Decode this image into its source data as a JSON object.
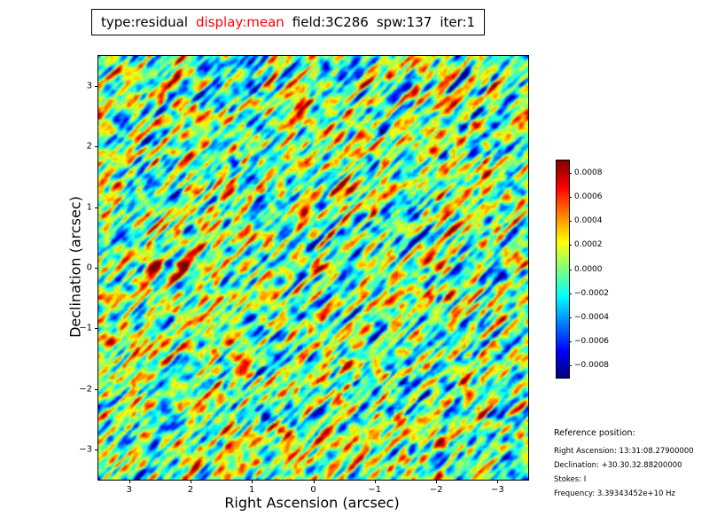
{
  "title": {
    "parts": [
      {
        "text": "type:residual",
        "color": "#000000"
      },
      {
        "text": "display:mean",
        "color": "#ff0000"
      },
      {
        "text": "field:3C286",
        "color": "#000000"
      },
      {
        "text": "spw:137",
        "color": "#000000"
      },
      {
        "text": "iter:1",
        "color": "#000000"
      }
    ]
  },
  "axes": {
    "xlabel": "Right Ascension (arcsec)",
    "ylabel": "Declination (arcsec)",
    "x_range": [
      3.5,
      -3.5
    ],
    "y_range": [
      3.5,
      -3.5
    ],
    "x_ticks": {
      "values": [
        3,
        2,
        1,
        0,
        -1,
        -2,
        -3
      ],
      "labels": [
        "3",
        "2",
        "1",
        "0",
        "−1",
        "−2",
        "−3"
      ]
    },
    "y_ticks": {
      "values": [
        3,
        2,
        1,
        0,
        -1,
        -2,
        -3
      ],
      "labels": [
        "3",
        "2",
        "1",
        "0",
        "−1",
        "−2",
        "−3"
      ]
    }
  },
  "colorbar": {
    "vmin": -0.0009,
    "vmax": 0.0009,
    "colormap": "jet",
    "ticks": {
      "values": [
        0.0008,
        0.0006,
        0.0004,
        0.0002,
        0,
        -0.0002,
        -0.0004,
        -0.0006,
        -0.0008
      ],
      "labels": [
        "0.0008",
        "0.0006",
        "0.0004",
        "0.0002",
        "0.0000",
        "−0.0002",
        "−0.0004",
        "−0.0006",
        "−0.0008"
      ]
    }
  },
  "reference": {
    "heading": "Reference position:",
    "lines": [
      "Right Ascension: 13:31:08.27900000",
      "Declination: +30.30.32.88200000",
      "Stokes: I",
      "Frequency: 3.39343452e+10 Hz"
    ]
  },
  "chart_data": {
    "type": "heatmap",
    "title": "type:residual display:mean field:3C286 spw:137 iter:1",
    "xlabel": "Right Ascension (arcsec)",
    "ylabel": "Declination (arcsec)",
    "x_range": [
      3.5,
      -3.5
    ],
    "y_range": [
      -3.5,
      3.5
    ],
    "value_range": [
      -0.0009,
      0.0009
    ],
    "colormap": "jet",
    "grid": false,
    "legend": "colorbar-right",
    "description": "Interferometric residual noise image of field 3C286: zero-mean correlated noise (mostly green/cyan, |value| < 0.0003) with diagonal fringe streaks of yellow/orange and cyan, plus scattered compact saturated red and dark-blue peaks approaching ±0.0008.",
    "noise": {
      "seed": 1337,
      "grid": 240,
      "streak_len": 6,
      "streak_dir": [
        1,
        -1
      ],
      "bandpass_radius": 5,
      "blob_radius": 2,
      "w_streak": 0.95,
      "w_blob": 0.85,
      "sigma": 0.00033
    }
  }
}
